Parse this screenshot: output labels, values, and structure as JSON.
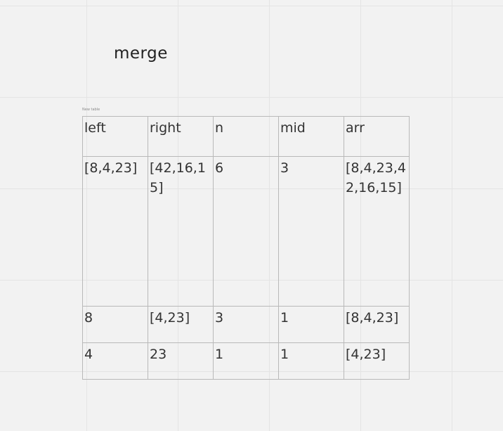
{
  "board": {
    "title": "merge",
    "table_caption": "New table"
  },
  "table": {
    "headers": [
      "left",
      "right",
      "n",
      "mid",
      "arr"
    ],
    "rows": [
      [
        "[8,4,23]",
        "[42,16,15]",
        "6",
        "3",
        "[8,4,23,42,16,15]"
      ],
      [
        "8",
        "[4,23]",
        "3",
        "1",
        "[8,4,23]"
      ],
      [
        "4",
        "23",
        "1",
        "1",
        "[4,23]"
      ]
    ]
  }
}
